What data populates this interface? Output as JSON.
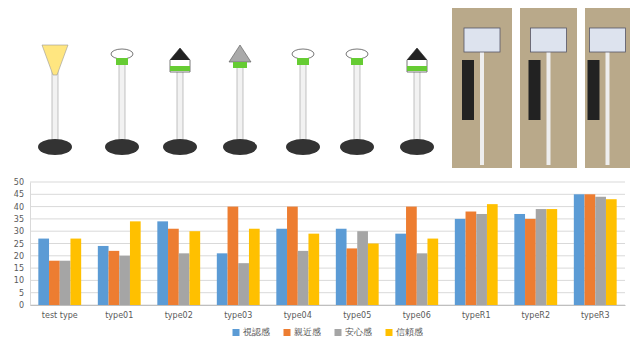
{
  "chart_data": {
    "type": "bar",
    "categories": [
      "test type",
      "type01",
      "type02",
      "type03",
      "type04",
      "type05",
      "type06",
      "typeR1",
      "typeR2",
      "typeR3"
    ],
    "series": [
      {
        "name": "視認感",
        "color": "#5b9bd5",
        "values": [
          27,
          24,
          34,
          21,
          31,
          31,
          29,
          35,
          37,
          45
        ]
      },
      {
        "name": "親近感",
        "color": "#ed7d31",
        "values": [
          18,
          22,
          31,
          40,
          40,
          23,
          40,
          38,
          35,
          45
        ]
      },
      {
        "name": "安心感",
        "color": "#a5a5a5",
        "values": [
          18,
          20,
          21,
          17,
          22,
          30,
          21,
          37,
          39,
          44
        ]
      },
      {
        "name": "信頼感",
        "color": "#ffc000",
        "values": [
          27,
          34,
          30,
          31,
          29,
          25,
          27,
          41,
          39,
          43
        ]
      }
    ],
    "ylim": [
      0,
      50
    ],
    "yticks": [
      0,
      5,
      10,
      15,
      20,
      25,
      30,
      35,
      40,
      45,
      50
    ],
    "grid": true,
    "legend": "bottom"
  }
}
